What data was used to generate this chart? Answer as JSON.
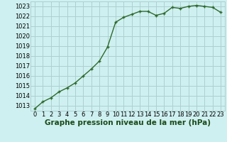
{
  "x": [
    0,
    1,
    2,
    3,
    4,
    5,
    6,
    7,
    8,
    9,
    10,
    11,
    12,
    13,
    14,
    15,
    16,
    17,
    18,
    19,
    20,
    21,
    22,
    23
  ],
  "y": [
    1012.7,
    1013.4,
    1013.8,
    1014.4,
    1014.8,
    1015.3,
    1016.0,
    1016.7,
    1017.5,
    1018.9,
    1021.4,
    1021.9,
    1022.2,
    1022.5,
    1022.5,
    1022.1,
    1022.3,
    1022.9,
    1022.8,
    1023.0,
    1023.1,
    1023.0,
    1022.9,
    1022.4
  ],
  "ylim": [
    1012.5,
    1023.5
  ],
  "xlim": [
    -0.5,
    23.5
  ],
  "yticks": [
    1013,
    1014,
    1015,
    1016,
    1017,
    1018,
    1019,
    1020,
    1021,
    1022,
    1023
  ],
  "xticks": [
    0,
    1,
    2,
    3,
    4,
    5,
    6,
    7,
    8,
    9,
    10,
    11,
    12,
    13,
    14,
    15,
    16,
    17,
    18,
    19,
    20,
    21,
    22,
    23
  ],
  "line_color": "#2d6a2d",
  "marker_color": "#2d6a2d",
  "bg_plot": "#cff0f0",
  "bg_grid": "#aed0d0",
  "xlabel": "Graphe pression niveau de la mer (hPa)",
  "xlabel_fontsize": 7.5,
  "tick_fontsize": 6.0,
  "line_width": 1.0
}
